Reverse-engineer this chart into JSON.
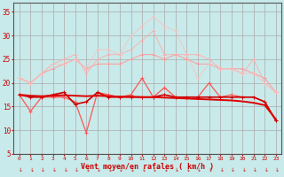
{
  "xlabel": "Vent moyen/en rafales ( km/h )",
  "x": [
    0,
    1,
    2,
    3,
    4,
    5,
    6,
    7,
    8,
    9,
    10,
    11,
    12,
    13,
    14,
    15,
    16,
    17,
    18,
    19,
    20,
    21,
    22,
    23
  ],
  "series": [
    {
      "color": "#ff9999",
      "alpha": 0.85,
      "lw": 0.8,
      "marker": "+",
      "ms": 3,
      "y": [
        21,
        20,
        22,
        23,
        24,
        25,
        23,
        24,
        24,
        24,
        25,
        26,
        26,
        25,
        26,
        25,
        24,
        24,
        23,
        23,
        23,
        22,
        21,
        18
      ]
    },
    {
      "color": "#ffaaaa",
      "alpha": 0.75,
      "lw": 0.8,
      "marker": "+",
      "ms": 3,
      "y": [
        21,
        20,
        22,
        24,
        25,
        26,
        22,
        25,
        26,
        26,
        27,
        29,
        31,
        26,
        26,
        26,
        26,
        25,
        23,
        23,
        22,
        25,
        20,
        18
      ]
    },
    {
      "color": "#ffbbbb",
      "alpha": 0.65,
      "lw": 0.8,
      "marker": "+",
      "ms": 3,
      "y": [
        21,
        20,
        22,
        24,
        24,
        25,
        23,
        27,
        27,
        26,
        30,
        32,
        34,
        32,
        31,
        26,
        21,
        24,
        23,
        23,
        22,
        22,
        20,
        18
      ]
    },
    {
      "color": "#ff5555",
      "alpha": 1.0,
      "lw": 0.9,
      "marker": "+",
      "ms": 3,
      "y": [
        17.5,
        14,
        17,
        17,
        17,
        16,
        9.5,
        18,
        17.5,
        17,
        17.5,
        21,
        17,
        19,
        17,
        17,
        17,
        20,
        17,
        17.5,
        17,
        17,
        16,
        12
      ]
    },
    {
      "color": "#cc0000",
      "alpha": 1.0,
      "lw": 1.2,
      "marker": "+",
      "ms": 3,
      "y": [
        17.5,
        17,
        17,
        17.5,
        18,
        15.5,
        16,
        18,
        17,
        17,
        17,
        17,
        17,
        17.5,
        17,
        17,
        17,
        17,
        17,
        17,
        17,
        17,
        16,
        12
      ]
    },
    {
      "color": "#dd0000",
      "alpha": 1.0,
      "lw": 1.4,
      "marker": null,
      "ms": 0,
      "y": [
        17.5,
        17.3,
        17.2,
        17.3,
        17.4,
        17.3,
        17.2,
        17.3,
        17.2,
        17.1,
        17.1,
        17.0,
        17.0,
        16.9,
        16.8,
        16.7,
        16.6,
        16.5,
        16.4,
        16.3,
        16.1,
        15.8,
        15.3,
        12.3
      ]
    }
  ],
  "ylim": [
    5,
    37
  ],
  "yticks": [
    5,
    10,
    15,
    20,
    25,
    30,
    35
  ],
  "xlim": [
    -0.5,
    23.5
  ],
  "bg_color": "#c8eaea",
  "grid_color": "#aaaaaa",
  "xlabel_color": "#cc0000",
  "tick_color": "#cc0000",
  "axis_color": "#555555"
}
